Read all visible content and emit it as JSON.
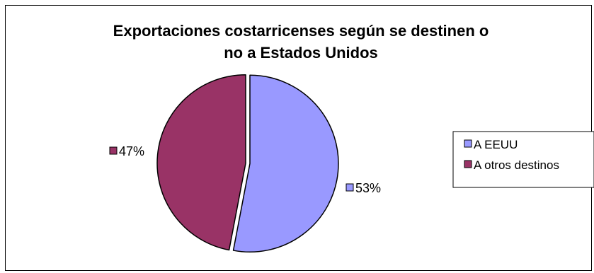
{
  "chart_data": {
    "type": "pie",
    "title_lines": [
      "Exportaciones costarricenses según se destinen o",
      "no a Estados Unidos"
    ],
    "slices": [
      {
        "name": "A EEUU",
        "value": 53,
        "label": "53%",
        "color": "#9999ff"
      },
      {
        "name": "A otros destinos",
        "value": 47,
        "label": "47%",
        "color": "#993366"
      }
    ],
    "legend_position": "right",
    "data_labels": "outside with legend key",
    "exploded": true
  }
}
